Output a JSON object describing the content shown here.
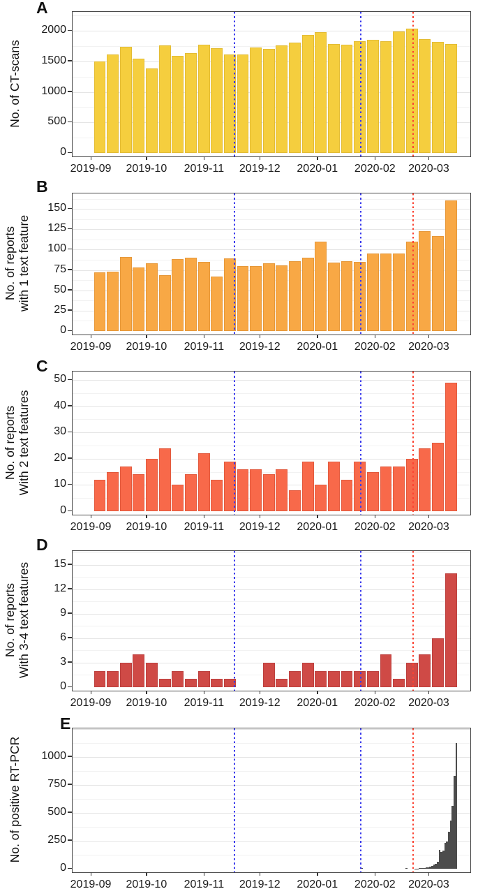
{
  "figure": {
    "background": "#ffffff",
    "x_axis": {
      "tick_labels": [
        "2019-09",
        "2019-10",
        "2019-11",
        "2019-12",
        "2020-01",
        "2020-02",
        "2020-03"
      ],
      "tick_dates": [
        "2019-09-01",
        "2019-10-01",
        "2019-11-01",
        "2019-12-01",
        "2020-01-01",
        "2020-02-01",
        "2020-03-01"
      ]
    },
    "vlines": [
      {
        "date": "2019-11-17",
        "color": "#3b3bec",
        "style": "dotted"
      },
      {
        "date": "2020-01-24",
        "color": "#3b3bec",
        "style": "dotted"
      },
      {
        "date": "2020-02-21",
        "color": "#fb4433",
        "style": "dotted"
      }
    ]
  },
  "chart_data": [
    {
      "type": "bar",
      "panel_label": "A",
      "bin": "week",
      "ylabel_lines": [
        "No. of CT-scans"
      ],
      "fill": "#f5ce3e",
      "stroke": "#e3bc35",
      "yticks": [
        0,
        500,
        1000,
        1500,
        2000
      ],
      "ylim": [
        0,
        2310
      ],
      "categories": [
        "2019-09-02",
        "2019-09-09",
        "2019-09-16",
        "2019-09-23",
        "2019-09-30",
        "2019-10-07",
        "2019-10-14",
        "2019-10-21",
        "2019-10-28",
        "2019-11-04",
        "2019-11-11",
        "2019-11-18",
        "2019-11-25",
        "2019-12-02",
        "2019-12-09",
        "2019-12-16",
        "2019-12-23",
        "2019-12-30",
        "2020-01-06",
        "2020-01-13",
        "2020-01-20",
        "2020-01-27",
        "2020-02-03",
        "2020-02-10",
        "2020-02-17",
        "2020-02-24",
        "2020-03-02",
        "2020-03-09"
      ],
      "values": [
        1500,
        1610,
        1740,
        1540,
        1380,
        1760,
        1590,
        1640,
        1770,
        1720,
        1610,
        1610,
        1730,
        1700,
        1760,
        1810,
        1930,
        1980,
        1780,
        1770,
        1830,
        1850,
        1830,
        1990,
        2030,
        1860,
        1820,
        1780
      ]
    },
    {
      "type": "bar",
      "panel_label": "B",
      "bin": "week",
      "ylabel_lines": [
        "No. of reports",
        "with 1 text feature"
      ],
      "fill": "#f8a845",
      "stroke": "#e6983a",
      "yticks": [
        0,
        25,
        50,
        75,
        100,
        125,
        150
      ],
      "ylim": [
        0,
        169
      ],
      "categories": [
        "2019-09-02",
        "2019-09-09",
        "2019-09-16",
        "2019-09-23",
        "2019-09-30",
        "2019-10-07",
        "2019-10-14",
        "2019-10-21",
        "2019-10-28",
        "2019-11-04",
        "2019-11-11",
        "2019-11-18",
        "2019-11-25",
        "2019-12-02",
        "2019-12-09",
        "2019-12-16",
        "2019-12-23",
        "2019-12-30",
        "2020-01-06",
        "2020-01-13",
        "2020-01-20",
        "2020-01-27",
        "2020-02-03",
        "2020-02-10",
        "2020-02-17",
        "2020-02-24",
        "2020-03-02",
        "2020-03-09"
      ],
      "values": [
        72,
        73,
        91,
        78,
        83,
        69,
        88,
        90,
        85,
        67,
        89,
        80,
        80,
        83,
        81,
        86,
        90,
        110,
        84,
        86,
        85,
        95,
        95,
        95,
        110,
        123,
        117,
        160
      ]
    },
    {
      "type": "bar",
      "panel_label": "C",
      "bin": "week",
      "ylabel_lines": [
        "No. of reports",
        "With 2 text features"
      ],
      "fill": "#f8694a",
      "stroke": "#e25a3e",
      "yticks": [
        0,
        10,
        20,
        30,
        40,
        50
      ],
      "ylim": [
        0,
        53.2
      ],
      "categories": [
        "2019-09-02",
        "2019-09-09",
        "2019-09-16",
        "2019-09-23",
        "2019-09-30",
        "2019-10-07",
        "2019-10-14",
        "2019-10-21",
        "2019-10-28",
        "2019-11-04",
        "2019-11-11",
        "2019-11-18",
        "2019-11-25",
        "2019-12-02",
        "2019-12-09",
        "2019-12-16",
        "2019-12-23",
        "2019-12-30",
        "2020-01-06",
        "2020-01-13",
        "2020-01-20",
        "2020-01-27",
        "2020-02-03",
        "2020-02-10",
        "2020-02-17",
        "2020-02-24",
        "2020-03-02",
        "2020-03-09"
      ],
      "values": [
        12,
        15,
        17,
        14,
        20,
        24,
        10,
        14,
        22,
        12,
        19,
        16,
        16,
        14,
        16,
        8,
        19,
        10,
        19,
        12,
        19,
        15,
        17,
        17,
        20,
        24,
        26,
        49
      ]
    },
    {
      "type": "bar",
      "panel_label": "D",
      "bin": "week",
      "ylabel_lines": [
        "No. of reports",
        "With 3-4 text features"
      ],
      "fill": "#cf4a46",
      "stroke": "#bc403e",
      "yticks": [
        0,
        3,
        6,
        9,
        12,
        15
      ],
      "ylim": [
        0,
        16.7
      ],
      "categories": [
        "2019-09-02",
        "2019-09-09",
        "2019-09-16",
        "2019-09-23",
        "2019-09-30",
        "2019-10-07",
        "2019-10-14",
        "2019-10-21",
        "2019-10-28",
        "2019-11-04",
        "2019-11-11",
        "2019-11-18",
        "2019-11-25",
        "2019-12-02",
        "2019-12-09",
        "2019-12-16",
        "2019-12-23",
        "2019-12-30",
        "2020-01-06",
        "2020-01-13",
        "2020-01-20",
        "2020-01-27",
        "2020-02-03",
        "2020-02-10",
        "2020-02-17",
        "2020-02-24",
        "2020-03-02",
        "2020-03-09"
      ],
      "values": [
        2,
        2,
        3,
        4,
        3,
        1,
        2,
        1,
        2,
        1,
        1,
        0,
        0,
        3,
        1,
        2,
        3,
        2,
        2,
        2,
        2,
        2,
        4,
        1,
        3,
        4,
        6,
        14
      ]
    },
    {
      "type": "bar",
      "panel_label": "E",
      "bin": "day",
      "ylabel_lines": [
        "No. of positive RT-PCR"
      ],
      "fill": "#4c4c4c",
      "stroke": "#4c4c4c",
      "yticks": [
        0,
        250,
        500,
        750,
        1000
      ],
      "ylim": [
        0,
        1256
      ],
      "categories": [
        "2020-01-24",
        "2020-02-17",
        "2020-02-22",
        "2020-02-23",
        "2020-02-24",
        "2020-02-25",
        "2020-02-26",
        "2020-02-27",
        "2020-02-28",
        "2020-02-29",
        "2020-03-01",
        "2020-03-02",
        "2020-03-03",
        "2020-03-04",
        "2020-03-05",
        "2020-03-06",
        "2020-03-07",
        "2020-03-08",
        "2020-03-09",
        "2020-03-10",
        "2020-03-11",
        "2020-03-12",
        "2020-03-13",
        "2020-03-14",
        "2020-03-15"
      ],
      "values": [
        8,
        8,
        3,
        3,
        4,
        5,
        6,
        8,
        10,
        14,
        18,
        25,
        35,
        45,
        60,
        170,
        150,
        165,
        230,
        245,
        330,
        430,
        560,
        830,
        1125
      ]
    }
  ]
}
